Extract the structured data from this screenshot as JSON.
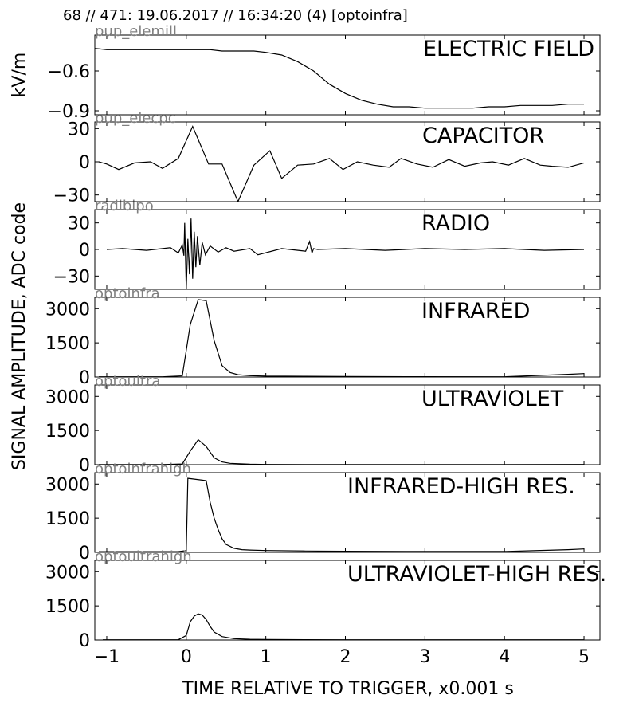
{
  "header": "68 // 471:   19.06.2017 // 16:34:20 (4)  [optoinfra]",
  "ylabel_top": "kV/m",
  "ylabel_main": "SIGNAL AMPLITUDE,  ADC code",
  "xlabel": "TIME RELATIVE TO TRIGGER,   x0.001 s",
  "xticks": [
    -1,
    0,
    1,
    2,
    3,
    4,
    5
  ],
  "colors": {
    "line": "#000000",
    "tag": "#808080",
    "frame": "#000000"
  },
  "chart_data": [
    {
      "type": "line",
      "title": "ELECTRIC FIELD",
      "tag": "pup_elemill",
      "xlim": [
        -1.15,
        5.2
      ],
      "ylim": [
        -0.93,
        -0.33
      ],
      "yticks": [
        -0.6,
        -0.9
      ],
      "x": [
        -1.15,
        -1.0,
        -0.5,
        0.0,
        0.3,
        0.45,
        0.85,
        1.0,
        1.2,
        1.4,
        1.6,
        1.8,
        2.0,
        2.2,
        2.4,
        2.6,
        2.8,
        3.0,
        3.2,
        3.4,
        3.6,
        3.8,
        4.0,
        4.2,
        4.4,
        4.6,
        4.8,
        5.0
      ],
      "y": [
        -0.43,
        -0.44,
        -0.44,
        -0.44,
        -0.44,
        -0.45,
        -0.45,
        -0.46,
        -0.48,
        -0.53,
        -0.6,
        -0.7,
        -0.77,
        -0.82,
        -0.85,
        -0.87,
        -0.87,
        -0.88,
        -0.88,
        -0.88,
        -0.88,
        -0.87,
        -0.87,
        -0.86,
        -0.86,
        -0.86,
        -0.85,
        -0.85
      ]
    },
    {
      "type": "line",
      "title": "CAPACITOR",
      "tag": "pup_elecpc",
      "xlim": [
        -1.15,
        5.2
      ],
      "ylim": [
        -36,
        36
      ],
      "yticks": [
        30,
        0,
        -30
      ],
      "x": [
        -1.1,
        -1.0,
        -0.85,
        -0.65,
        -0.45,
        -0.3,
        -0.1,
        0.08,
        0.28,
        0.45,
        0.65,
        0.85,
        1.05,
        1.2,
        1.4,
        1.6,
        1.8,
        1.97,
        2.15,
        2.35,
        2.55,
        2.7,
        2.9,
        3.1,
        3.3,
        3.5,
        3.7,
        3.85,
        4.05,
        4.25,
        4.45,
        4.6,
        4.8,
        5.0
      ],
      "y": [
        0,
        -2,
        -7,
        -1,
        0,
        -6,
        3,
        32,
        -2,
        -2,
        -36,
        -3,
        10,
        -15,
        -3,
        -2,
        3,
        -7,
        0,
        -3,
        -5,
        3,
        -2,
        -5,
        2,
        -4,
        -1,
        0,
        -3,
        3,
        -3,
        -4,
        -5,
        -1
      ]
    },
    {
      "type": "line",
      "title": "RADIO",
      "tag": "radibipo",
      "xlim": [
        -1.15,
        5.2
      ],
      "ylim": [
        -45,
        45
      ],
      "yticks": [
        30,
        0,
        -30
      ],
      "x": [
        -1.0,
        -0.8,
        -0.5,
        -0.2,
        -0.1,
        -0.05,
        -0.03,
        -0.02,
        0.0,
        0.02,
        0.04,
        0.06,
        0.08,
        0.1,
        0.12,
        0.14,
        0.17,
        0.2,
        0.24,
        0.3,
        0.4,
        0.5,
        0.6,
        0.8,
        0.9,
        1.2,
        1.5,
        1.55,
        1.58,
        1.6,
        1.65,
        2.0,
        2.5,
        3.0,
        3.5,
        4.0,
        4.5,
        5.0
      ],
      "y": [
        0,
        1,
        -1,
        2,
        -4,
        5,
        -7,
        30,
        -45,
        12,
        -28,
        35,
        -33,
        20,
        -20,
        15,
        -18,
        8,
        -6,
        4,
        -3,
        2,
        -2,
        1,
        -6,
        1,
        -2,
        9,
        -4,
        1,
        0,
        1,
        -1,
        1,
        0,
        1,
        -1,
        0
      ]
    },
    {
      "type": "line",
      "title": "INFRARED",
      "tag": "optoinfra",
      "xlim": [
        -1.15,
        5.2
      ],
      "ylim": [
        0,
        3500
      ],
      "yticks": [
        3000,
        1500,
        0
      ],
      "x": [
        -1.1,
        -0.3,
        -0.05,
        0.05,
        0.15,
        0.25,
        0.35,
        0.45,
        0.55,
        0.65,
        0.8,
        1.0,
        1.5,
        2.0,
        3.0,
        4.0,
        4.8,
        5.0
      ],
      "y": [
        10,
        10,
        50,
        2300,
        3400,
        3350,
        1600,
        500,
        200,
        100,
        60,
        40,
        30,
        20,
        15,
        10,
        120,
        150
      ]
    },
    {
      "type": "line",
      "title": "ULTRAVIOLET",
      "tag": "optoultra",
      "xlim": [
        -1.15,
        5.2
      ],
      "ylim": [
        0,
        3500
      ],
      "yticks": [
        3000,
        1500,
        0
      ],
      "x": [
        -1.1,
        -0.3,
        -0.05,
        0.05,
        0.15,
        0.25,
        0.35,
        0.45,
        0.55,
        0.8,
        1.0,
        1.5,
        2.0,
        3.0,
        4.0,
        5.0
      ],
      "y": [
        5,
        5,
        30,
        600,
        1100,
        800,
        300,
        120,
        60,
        20,
        10,
        8,
        5,
        5,
        5,
        10
      ]
    },
    {
      "type": "line",
      "title": "INFRARED-HIGH RES.",
      "tag": "optoinfrahigh",
      "xlim": [
        -1.15,
        5.2
      ],
      "ylim": [
        0,
        3500
      ],
      "yticks": [
        3000,
        1500,
        0
      ],
      "x": [
        -1.1,
        -0.1,
        0.0,
        0.02,
        0.25,
        0.3,
        0.35,
        0.4,
        0.45,
        0.5,
        0.6,
        0.7,
        0.8,
        1.0,
        1.5,
        2.0,
        3.0,
        4.0,
        4.8,
        5.0
      ],
      "y": [
        30,
        30,
        80,
        3250,
        3150,
        2200,
        1500,
        1000,
        600,
        350,
        180,
        120,
        100,
        80,
        60,
        50,
        40,
        40,
        120,
        150
      ]
    },
    {
      "type": "line",
      "title": "ULTRAVIOLET-HIGH RES.",
      "tag": "optoultrahigh",
      "xlim": [
        -1.15,
        5.2
      ],
      "ylim": [
        0,
        3500
      ],
      "yticks": [
        3000,
        1500,
        0
      ],
      "x": [
        -1.05,
        -0.1,
        0.0,
        0.05,
        0.1,
        0.15,
        0.2,
        0.25,
        0.3,
        0.35,
        0.45,
        0.6,
        0.8,
        1.0,
        2.0,
        3.0,
        4.0,
        5.0
      ],
      "y": [
        10,
        10,
        200,
        800,
        1050,
        1150,
        1100,
        900,
        600,
        350,
        150,
        60,
        30,
        20,
        10,
        10,
        10,
        10
      ]
    }
  ]
}
